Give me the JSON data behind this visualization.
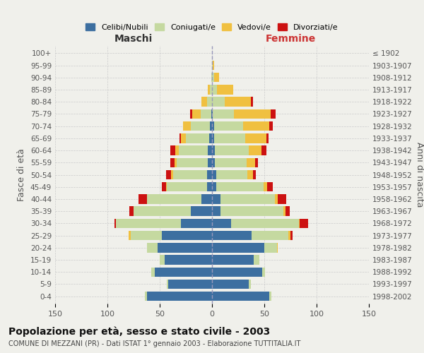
{
  "age_groups": [
    "0-4",
    "5-9",
    "10-14",
    "15-19",
    "20-24",
    "25-29",
    "30-34",
    "35-39",
    "40-44",
    "45-49",
    "50-54",
    "55-59",
    "60-64",
    "65-69",
    "70-74",
    "75-79",
    "80-84",
    "85-89",
    "90-94",
    "95-99",
    "100+"
  ],
  "birth_years": [
    "1998-2002",
    "1993-1997",
    "1988-1992",
    "1983-1987",
    "1978-1982",
    "1973-1977",
    "1968-1972",
    "1963-1967",
    "1958-1962",
    "1953-1957",
    "1948-1952",
    "1943-1947",
    "1938-1942",
    "1933-1937",
    "1928-1932",
    "1923-1927",
    "1918-1922",
    "1913-1917",
    "1908-1912",
    "1903-1907",
    "≤ 1902"
  ],
  "maschi": {
    "celibi": [
      62,
      42,
      55,
      45,
      52,
      48,
      30,
      20,
      10,
      5,
      5,
      4,
      4,
      3,
      2,
      1,
      0,
      0,
      0,
      0,
      0
    ],
    "coniugati": [
      2,
      1,
      3,
      5,
      10,
      30,
      62,
      55,
      52,
      38,
      32,
      30,
      28,
      22,
      18,
      10,
      5,
      2,
      1,
      0,
      0
    ],
    "vedovi": [
      0,
      0,
      0,
      0,
      0,
      2,
      0,
      0,
      0,
      1,
      2,
      2,
      3,
      5,
      8,
      8,
      5,
      2,
      0,
      0,
      0
    ],
    "divorziati": [
      0,
      0,
      0,
      0,
      0,
      0,
      1,
      4,
      8,
      4,
      5,
      4,
      5,
      1,
      0,
      2,
      0,
      0,
      0,
      0,
      0
    ]
  },
  "femmine": {
    "nubili": [
      55,
      35,
      48,
      40,
      50,
      38,
      18,
      8,
      8,
      4,
      4,
      3,
      3,
      2,
      2,
      1,
      0,
      0,
      0,
      0,
      0
    ],
    "coniugate": [
      2,
      2,
      3,
      5,
      12,
      35,
      65,
      60,
      52,
      45,
      30,
      30,
      32,
      30,
      28,
      20,
      12,
      5,
      2,
      1,
      0
    ],
    "vedove": [
      0,
      0,
      0,
      0,
      1,
      2,
      1,
      2,
      3,
      4,
      5,
      8,
      12,
      20,
      25,
      35,
      25,
      15,
      5,
      1,
      0
    ],
    "divorziate": [
      0,
      0,
      0,
      0,
      0,
      2,
      8,
      4,
      8,
      5,
      3,
      3,
      5,
      2,
      3,
      5,
      2,
      0,
      0,
      0,
      0
    ]
  },
  "colors": {
    "celibi": "#3d6fa0",
    "coniugati": "#c5d9a0",
    "vedovi": "#f0c040",
    "divorziati": "#cc1111"
  },
  "xlim": 150,
  "title": "Popolazione per età, sesso e stato civile - 2003",
  "subtitle": "COMUNE DI MEZZANI (PR) - Dati ISTAT 1° gennaio 2003 - Elaborazione TUTTITALIA.IT",
  "ylabel_left": "Fasce di età",
  "ylabel_right": "Anni di nascita",
  "xlabel_left": "Maschi",
  "xlabel_right": "Femmine",
  "background_color": "#f0f0eb",
  "grid_color": "#cccccc"
}
